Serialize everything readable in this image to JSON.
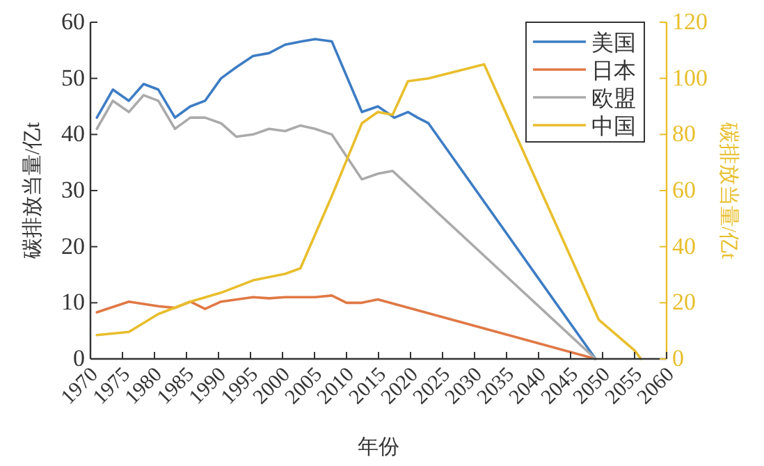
{
  "chart_data": {
    "type": "line",
    "xlabel": "年份",
    "ylabel": "碳排放当量/亿t",
    "y2label": "碳排放当量/亿t",
    "xlim": [
      1970,
      2060
    ],
    "xticks": [
      1970,
      1975,
      1980,
      1985,
      1990,
      1995,
      2000,
      2005,
      2010,
      2015,
      2020,
      2025,
      2030,
      2035,
      2040,
      2045,
      2050,
      2055,
      2060
    ],
    "ylim": [
      0,
      60
    ],
    "yticks": [
      0,
      10,
      20,
      30,
      40,
      50,
      60
    ],
    "y2lim": [
      0,
      120
    ],
    "y2ticks": [
      0,
      20,
      40,
      60,
      80,
      100,
      120
    ],
    "legend": "top right",
    "series": [
      {
        "name": "美国",
        "color": "#3d7cc4",
        "x": [
          1971,
          1973.5,
          1976,
          1978.3,
          1980.6,
          1983.2,
          1985.6,
          1987.9,
          1990.4,
          1992.8,
          1995.4,
          1997.9,
          2000.4,
          2003,
          2005.1,
          2007.7,
          2012.4,
          2014.9,
          2017.5,
          2019.6,
          2021.1,
          2022.8,
          2048.9
        ],
        "values": [
          43,
          48,
          46,
          49,
          48,
          43,
          45,
          46,
          50,
          52,
          54,
          54.5,
          56,
          56.6,
          57,
          56.6,
          44,
          45,
          43,
          44,
          43,
          42,
          0
        ]
      },
      {
        "name": "日本",
        "color": "#e07845",
        "x": [
          1971,
          1976,
          1980.6,
          1983.2,
          1985.6,
          1987.9,
          1990.4,
          1995.4,
          1997.9,
          2000.4,
          2005.1,
          2007.7,
          2010,
          2012.4,
          2014.9,
          2048.9
        ],
        "values": [
          8.3,
          10.2,
          9.4,
          9.1,
          10.2,
          8.9,
          10.2,
          11,
          10.8,
          11,
          11,
          11.3,
          10,
          10,
          10.6,
          0
        ]
      },
      {
        "name": "欧盟",
        "color": "#aaaaaa",
        "x": [
          1971,
          1973.5,
          1976,
          1978.3,
          1980.6,
          1983.2,
          1985.6,
          1987.9,
          1990.4,
          1992.8,
          1995.4,
          1997.9,
          2000.4,
          2002.8,
          2005.1,
          2007.7,
          2012.4,
          2014.9,
          2017.2,
          2048.9
        ],
        "values": [
          41,
          46,
          44,
          47,
          46,
          41,
          43,
          43,
          42,
          39.6,
          40,
          41,
          40.6,
          41.6,
          41,
          40,
          32,
          33,
          33.5,
          0
        ]
      },
      {
        "name": "中国",
        "color": "#e8be2c",
        "axis": "y2",
        "x": [
          1971,
          1976,
          1980.6,
          1985.6,
          1990.4,
          1995.4,
          2000.4,
          2002.8,
          2007.7,
          2012.4,
          2014.9,
          2017.2,
          2019.6,
          2022.8,
          2031.5,
          2049.4,
          2055,
          2056
        ],
        "values": [
          8.5,
          9.6,
          16,
          20.4,
          23.6,
          28,
          30.3,
          32.3,
          58,
          84,
          88,
          87,
          99,
          100,
          105,
          14,
          3,
          0
        ]
      }
    ]
  }
}
